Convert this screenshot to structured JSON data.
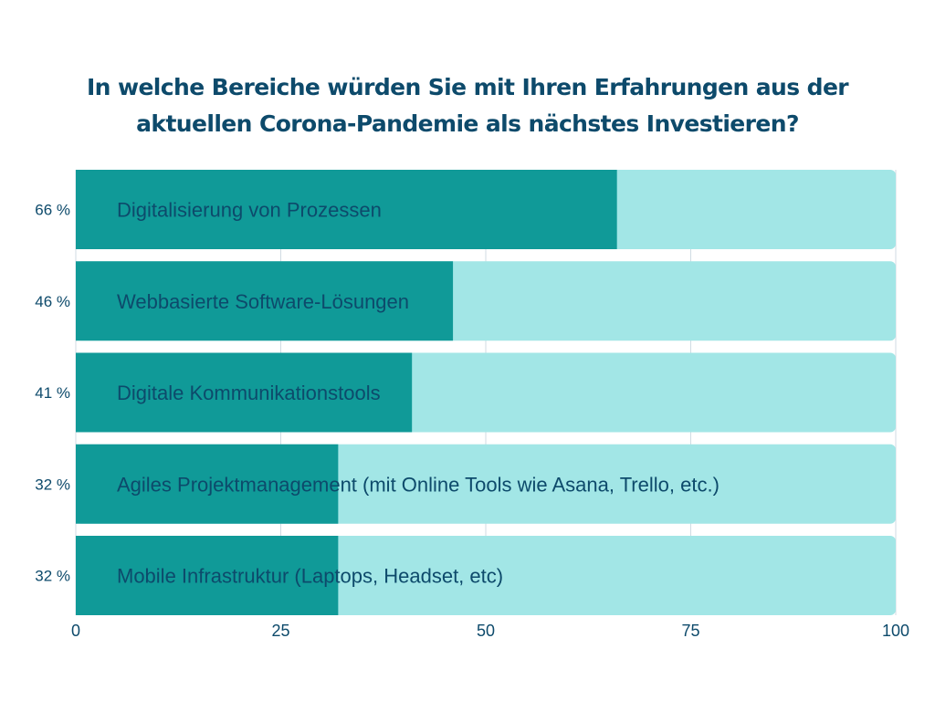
{
  "chart_data": {
    "type": "bar",
    "orientation": "horizontal",
    "stacked": true,
    "title_lines": [
      "In welche Bereiche würden Sie mit Ihren Erfahrungen aus der",
      "aktuellen Corona-Pandemie als nächstes Investieren?"
    ],
    "categories": [
      "Digitalisierung von Prozessen",
      "Webbasierte Software-Lösungen",
      "Digitale Kommunikationstools",
      "Agiles Projektmanagement (mit Online Tools wie Asana, Trello, etc.)",
      "Mobile Infrastruktur (Laptops, Headset, etc)"
    ],
    "series": [
      {
        "name": "Anteil",
        "values": [
          66,
          46,
          41,
          32,
          32
        ],
        "color": "#109a98"
      },
      {
        "name": "Rest",
        "values": [
          34,
          54,
          59,
          68,
          68
        ],
        "color": "#a2e6e6"
      }
    ],
    "value_labels": [
      "66 %",
      "46 %",
      "41 %",
      "32 %",
      "32 %"
    ],
    "xlim": [
      0,
      100
    ],
    "xticks": [
      0,
      25,
      50,
      75,
      100
    ],
    "xtick_labels": [
      "0",
      "25",
      "50",
      "75",
      "100"
    ],
    "xlabel": "",
    "ylabel": "",
    "grid": true,
    "legend": "none",
    "colors": {
      "text": "#0d4a6b",
      "grid": "#d0dbe3"
    }
  }
}
